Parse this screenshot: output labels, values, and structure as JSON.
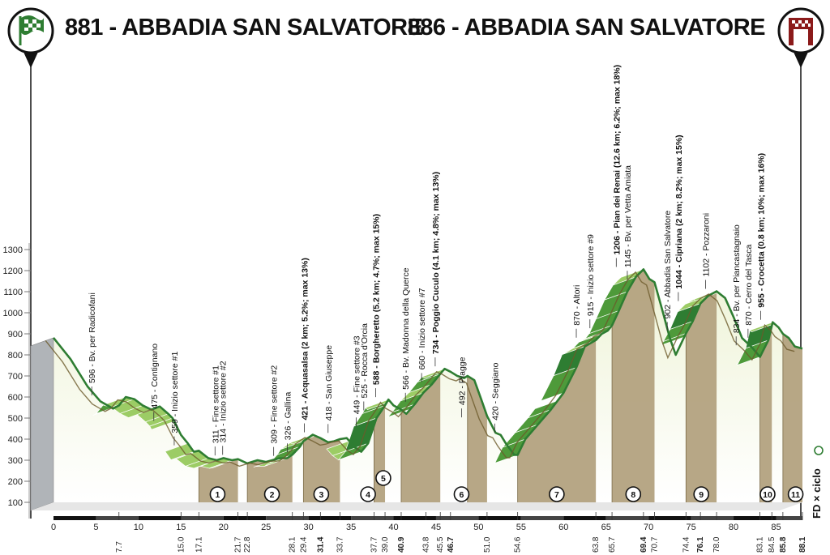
{
  "header": {
    "start_title": "881 - ABBADIA SAN SALVATORE",
    "end_title": "886 - ABBADIA SAN SALVATORE",
    "brand": "FD × ciclo"
  },
  "colors": {
    "climb_dark": "#2e7d32",
    "climb_light": "#9ccc65",
    "gravel": "#b3a27f",
    "profile_line": "#6b5a2a",
    "start_badge": "#2e7d32",
    "finish_badge": "#8b1a1a"
  },
  "chart_data": {
    "type": "area",
    "xlabel": "",
    "ylabel": "",
    "xlim": [
      0,
      88.1
    ],
    "ylim": [
      50,
      1350
    ],
    "y_ticks": [
      100,
      200,
      300,
      400,
      500,
      600,
      700,
      800,
      900,
      1000,
      1100,
      1200,
      1300
    ],
    "x_ticks": [
      0,
      5,
      10,
      15,
      20,
      25,
      30,
      35,
      40,
      45,
      50,
      55,
      60,
      65,
      70,
      75,
      80,
      85
    ],
    "profile": [
      [
        0,
        881
      ],
      [
        2,
        780
      ],
      [
        4,
        650
      ],
      [
        5.5,
        580
      ],
      [
        7,
        545
      ],
      [
        7.7,
        560
      ],
      [
        8.5,
        600
      ],
      [
        9.5,
        590
      ],
      [
        10.5,
        560
      ],
      [
        11.5,
        540
      ],
      [
        12.5,
        555
      ],
      [
        13.5,
        520
      ],
      [
        14,
        500
      ],
      [
        15,
        420
      ],
      [
        15.8,
        380
      ],
      [
        16.5,
        340
      ],
      [
        17.1,
        345
      ],
      [
        18.2,
        310
      ],
      [
        19.2,
        300
      ],
      [
        20,
        310
      ],
      [
        21,
        300
      ],
      [
        21.7,
        305
      ],
      [
        22.8,
        285
      ],
      [
        24,
        300
      ],
      [
        25,
        292
      ],
      [
        26.5,
        309
      ],
      [
        27.5,
        310
      ],
      [
        28.1,
        326
      ],
      [
        29,
        365
      ],
      [
        29.4,
        390
      ],
      [
        30.5,
        421
      ],
      [
        31.4,
        405
      ],
      [
        32.3,
        385
      ],
      [
        33,
        390
      ],
      [
        33.7,
        400
      ],
      [
        34.5,
        405
      ],
      [
        35.5,
        360
      ],
      [
        36.2,
        340
      ],
      [
        37,
        380
      ],
      [
        38,
        500
      ],
      [
        39,
        560
      ],
      [
        39.4,
        588
      ],
      [
        40,
        560
      ],
      [
        40.9,
        540
      ],
      [
        41.5,
        520
      ],
      [
        42.5,
        566
      ],
      [
        43.5,
        620
      ],
      [
        44.5,
        660
      ],
      [
        45.5,
        710
      ],
      [
        46,
        734
      ],
      [
        46.7,
        720
      ],
      [
        47.5,
        700
      ],
      [
        48.3,
        690
      ],
      [
        48.7,
        700
      ],
      [
        49.5,
        680
      ],
      [
        50.3,
        590
      ],
      [
        51,
        510
      ],
      [
        52,
        430
      ],
      [
        52.6,
        420
      ],
      [
        53.2,
        380
      ],
      [
        54.2,
        325
      ],
      [
        54.6,
        325
      ],
      [
        55.5,
        400
      ],
      [
        57,
        470
      ],
      [
        58.5,
        540
      ],
      [
        60,
        620
      ],
      [
        61.5,
        740
      ],
      [
        62.5,
        840
      ],
      [
        63.8,
        870
      ],
      [
        64.5,
        900
      ],
      [
        65.2,
        915
      ],
      [
        65.7,
        940
      ],
      [
        66.5,
        1010
      ],
      [
        67.5,
        1100
      ],
      [
        68.5,
        1170
      ],
      [
        69.4,
        1206
      ],
      [
        70.1,
        1160
      ],
      [
        70.7,
        1145
      ],
      [
        71.7,
        1000
      ],
      [
        72.5,
        880
      ],
      [
        73.2,
        800
      ],
      [
        74.4,
        902
      ],
      [
        75.2,
        960
      ],
      [
        76.1,
        1044
      ],
      [
        77,
        1080
      ],
      [
        78,
        1102
      ],
      [
        79,
        1070
      ],
      [
        80,
        980
      ],
      [
        81,
        880
      ],
      [
        82.2,
        834
      ],
      [
        83.1,
        790
      ],
      [
        84.1,
        870
      ],
      [
        84.6,
        955
      ],
      [
        85.3,
        930
      ],
      [
        85.8,
        900
      ],
      [
        86.5,
        880
      ],
      [
        87.2,
        840
      ],
      [
        88.1,
        830
      ]
    ],
    "climbs": [
      [
        7.3,
        14.2
      ],
      [
        15.8,
        21.5
      ],
      [
        26.2,
        30.8
      ],
      [
        34.8,
        39.6
      ],
      [
        42,
        46.3
      ],
      [
        54.4,
        59.3
      ],
      [
        60,
        69.4
      ],
      [
        74.2,
        78.2
      ],
      [
        83,
        84.8
      ]
    ],
    "gravel_sectors": [
      [
        17.1,
        21.7
      ],
      [
        22.8,
        28.1
      ],
      [
        29.4,
        33.7
      ],
      [
        37.7,
        39.0
      ],
      [
        40.9,
        45.5
      ],
      [
        48.7,
        51.0
      ],
      [
        54.6,
        63.8
      ],
      [
        65.7,
        70.7
      ],
      [
        74.4,
        78.0
      ],
      [
        83.1,
        84.5
      ],
      [
        85.8,
        88.1
      ]
    ],
    "sector_numbers": [
      "1",
      "2",
      "3",
      "4",
      "5",
      "6",
      "7",
      "8",
      "9",
      "10",
      "11"
    ],
    "sector_badge_km": [
      19.3,
      25.7,
      31.5,
      37.0,
      38.8,
      48.0,
      59.2,
      68.2,
      76.2,
      84.0,
      87.3
    ],
    "distance_labels": [
      {
        "km": 7.7,
        "text": "7.7",
        "bold": false
      },
      {
        "km": 15.0,
        "text": "15.0",
        "bold": false
      },
      {
        "km": 17.1,
        "text": "17.1",
        "bold": false
      },
      {
        "km": 21.7,
        "text": "21.7",
        "bold": false
      },
      {
        "km": 22.8,
        "text": "22.8",
        "bold": false
      },
      {
        "km": 28.1,
        "text": "28.1",
        "bold": false
      },
      {
        "km": 29.4,
        "text": "29.4",
        "bold": false
      },
      {
        "km": 31.4,
        "text": "31.4",
        "bold": true
      },
      {
        "km": 33.7,
        "text": "33.7",
        "bold": false
      },
      {
        "km": 37.7,
        "text": "37.7",
        "bold": false
      },
      {
        "km": 39.0,
        "text": "39.0",
        "bold": false
      },
      {
        "km": 40.9,
        "text": "40.9",
        "bold": true
      },
      {
        "km": 43.8,
        "text": "43.8",
        "bold": false
      },
      {
        "km": 45.5,
        "text": "45.5",
        "bold": false
      },
      {
        "km": 46.7,
        "text": "46.7",
        "bold": true
      },
      {
        "km": 51.0,
        "text": "51.0",
        "bold": false
      },
      {
        "km": 54.6,
        "text": "54.6",
        "bold": false
      },
      {
        "km": 63.8,
        "text": "63.8",
        "bold": false
      },
      {
        "km": 65.7,
        "text": "65.7",
        "bold": false
      },
      {
        "km": 69.4,
        "text": "69.4",
        "bold": true
      },
      {
        "km": 70.7,
        "text": "70.7",
        "bold": false
      },
      {
        "km": 74.4,
        "text": "74.4",
        "bold": false
      },
      {
        "km": 76.1,
        "text": "76.1",
        "bold": true
      },
      {
        "km": 78.0,
        "text": "78.0",
        "bold": false
      },
      {
        "km": 83.1,
        "text": "83.1",
        "bold": false
      },
      {
        "km": 84.5,
        "text": "84.5",
        "bold": false
      },
      {
        "km": 85.8,
        "text": "85.8",
        "bold": true
      },
      {
        "km": 88.1,
        "text": "88.1",
        "bold": true
      }
    ],
    "waypoints": [
      {
        "km": 4.5,
        "elev": 596,
        "text": "596 - Bv. per Radicofani",
        "bold": false
      },
      {
        "km": 11.8,
        "elev": 475,
        "text": "475 - Contignano",
        "bold": false
      },
      {
        "km": 14.2,
        "elev": 359,
        "text": "359 - Inizio settore #1",
        "bold": false
      },
      {
        "km": 19.0,
        "elev": 311,
        "text": "311 - Fine settore #1",
        "bold": false
      },
      {
        "km": 19.9,
        "elev": 314,
        "text": "314 - Inizio settore #2",
        "bold": false
      },
      {
        "km": 25.9,
        "elev": 309,
        "text": "309 - Fine settore #2",
        "bold": false
      },
      {
        "km": 27.5,
        "elev": 326,
        "text": "326 - Gallina",
        "bold": false
      },
      {
        "km": 29.5,
        "elev": 421,
        "text": "421 - Acquasalsa (2 km; 5.2%; max 13%)",
        "bold": true
      },
      {
        "km": 32.3,
        "elev": 418,
        "text": "418 - San Giuseppe",
        "bold": false
      },
      {
        "km": 35.6,
        "elev": 449,
        "text": "449 - Fine settore #3",
        "bold": false
      },
      {
        "km": 36.5,
        "elev": 525,
        "text": "525 - Rocca d'Orcia",
        "bold": false
      },
      {
        "km": 37.9,
        "elev": 588,
        "text": "588 - Borgheretto (5.2 km; 4.7%; max 15%)",
        "bold": true
      },
      {
        "km": 41.4,
        "elev": 566,
        "text": "566 - Bv. Madonna della Querce",
        "bold": false
      },
      {
        "km": 43.3,
        "elev": 660,
        "text": "660 - Inizio settore #7",
        "bold": false
      },
      {
        "km": 44.9,
        "elev": 734,
        "text": "734 - Poggio Cuculo (4.1 km; 4.8%; max 13%)",
        "bold": true
      },
      {
        "km": 48.0,
        "elev": 492,
        "text": "492 - Piagge",
        "bold": false
      },
      {
        "km": 51.9,
        "elev": 420,
        "text": "420 - Seggiano",
        "bold": false
      },
      {
        "km": 61.5,
        "elev": 870,
        "text": "870 - Altori",
        "bold": false
      },
      {
        "km": 63.1,
        "elev": 915,
        "text": "915 - Inizio settore #9",
        "bold": false
      },
      {
        "km": 66.2,
        "elev": 1206,
        "text": "1206 - Pian dei Renai (12.6 km; 6.2%; max 18%)",
        "bold": true
      },
      {
        "km": 67.5,
        "elev": 1145,
        "text": "1145 - Bv. per Vetta Amiata",
        "bold": false
      },
      {
        "km": 72.2,
        "elev": 902,
        "text": "902 - Abbadia San Salvatore",
        "bold": false
      },
      {
        "km": 73.5,
        "elev": 1044,
        "text": "1044 - Cipriana (2 km; 8.2%; max 15%)",
        "bold": true
      },
      {
        "km": 76.7,
        "elev": 1102,
        "text": "1102 - Pozzaroni",
        "bold": false
      },
      {
        "km": 80.3,
        "elev": 834,
        "text": "834 - Bv. per Piancastagnaio",
        "bold": false
      },
      {
        "km": 81.7,
        "elev": 870,
        "text": "870 - Cerro del Tasca",
        "bold": false
      },
      {
        "km": 83.2,
        "elev": 955,
        "text": "955 - Crocetta (0.8 km; 10%; max 16%)",
        "bold": true
      }
    ]
  }
}
